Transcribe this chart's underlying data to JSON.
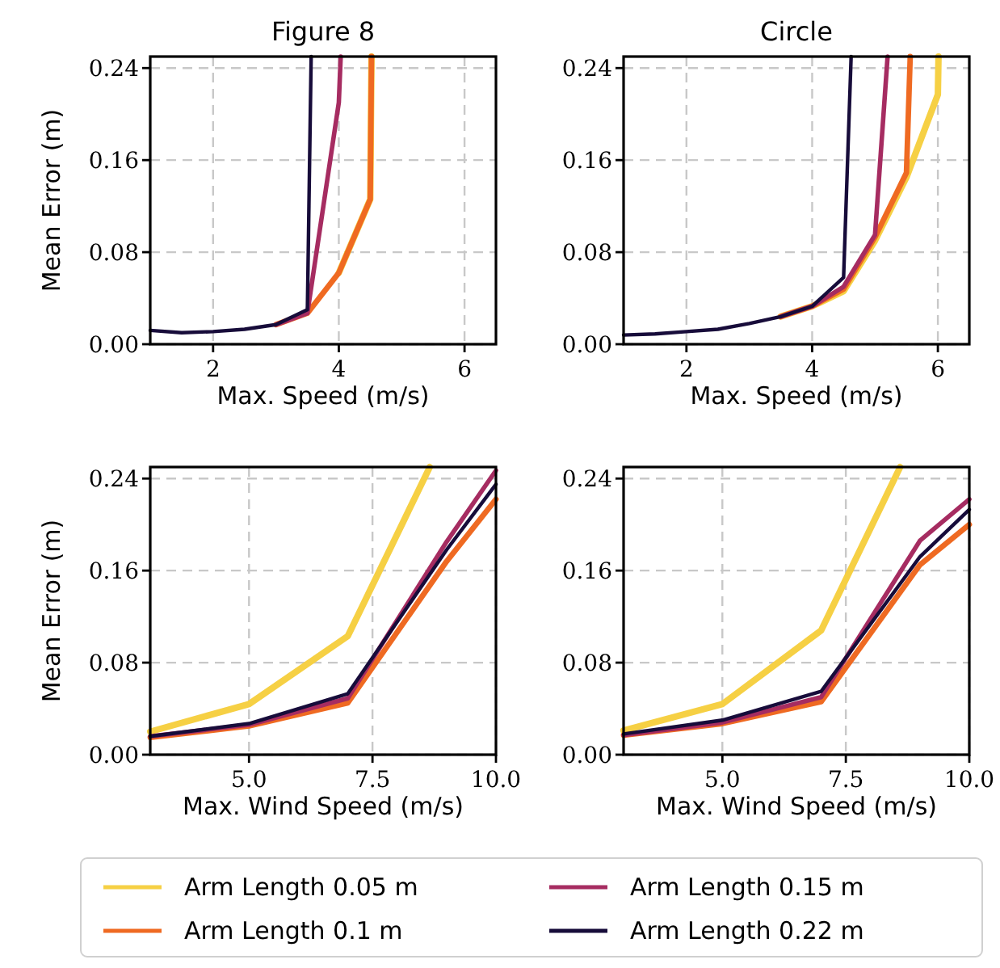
{
  "chart_data": [
    {
      "type": "line",
      "title": "Figure 8",
      "xlabel": "Max. Speed (m/s)",
      "ylabel": "Mean Error (m)",
      "xlim": [
        1,
        6.5
      ],
      "ylim": [
        0,
        0.25
      ],
      "xticks": [
        2,
        4,
        6
      ],
      "yticks": [
        {
          "value": 0,
          "label": "0.00"
        },
        {
          "value": 0.08,
          "label": "0.08"
        },
        {
          "value": 0.16,
          "label": "0.16"
        },
        {
          "value": 0.24,
          "label": "0.24"
        }
      ],
      "grid": true,
      "legend": "bottom",
      "series": [
        {
          "name": "Arm Length 0.05 m",
          "color": "#f6d044",
          "x": [
            4,
            4.5,
            4.52
          ],
          "values": [
            0.062,
            0.126,
            0.25
          ]
        },
        {
          "name": "Arm Length 0.1 m",
          "color": "#ef6a22",
          "x": [
            3,
            3.5,
            4,
            4.5,
            4.52
          ],
          "values": [
            0.017,
            0.027,
            0.062,
            0.126,
            0.25
          ]
        },
        {
          "name": "Arm Length 0.15 m",
          "color": "#a62c61",
          "x": [
            3,
            3.5,
            4,
            4.03
          ],
          "values": [
            0.017,
            0.027,
            0.21,
            0.25
          ]
        },
        {
          "name": "Arm Length 0.22 m",
          "color": "#170c3a",
          "x": [
            1,
            1.5,
            2,
            2.5,
            3,
            3.5,
            3.56
          ],
          "values": [
            0.012,
            0.01,
            0.011,
            0.013,
            0.017,
            0.03,
            0.25
          ]
        }
      ]
    },
    {
      "type": "line",
      "title": "Circle",
      "xlabel": "Max. Speed (m/s)",
      "xlim": [
        1,
        6.5
      ],
      "ylim": [
        0,
        0.25
      ],
      "xticks": [
        2,
        4,
        6
      ],
      "yticks": [
        {
          "value": 0,
          "label": "0.00"
        },
        {
          "value": 0.08,
          "label": "0.08"
        },
        {
          "value": 0.16,
          "label": "0.16"
        },
        {
          "value": 0.24,
          "label": "0.24"
        }
      ],
      "grid": true,
      "series": [
        {
          "color": "#f6d044",
          "x": [
            3.5,
            4,
            4.5,
            5,
            5.5,
            6,
            6.01
          ],
          "values": [
            0.024,
            0.033,
            0.046,
            0.09,
            0.145,
            0.217,
            0.25
          ]
        },
        {
          "color": "#ef6a22",
          "x": [
            3.5,
            4,
            4.5,
            5,
            5.5,
            5.56
          ],
          "values": [
            0.024,
            0.033,
            0.048,
            0.093,
            0.149,
            0.25
          ]
        },
        {
          "color": "#a62c61",
          "x": [
            3.5,
            4,
            4.5,
            5,
            5.2
          ],
          "values": [
            0.024,
            0.033,
            0.05,
            0.095,
            0.25
          ]
        },
        {
          "color": "#170c3a",
          "x": [
            1,
            1.5,
            2,
            2.5,
            3,
            3.5,
            4,
            4.5,
            4.62
          ],
          "values": [
            0.008,
            0.009,
            0.011,
            0.013,
            0.018,
            0.024,
            0.033,
            0.058,
            0.25
          ]
        }
      ]
    },
    {
      "type": "line",
      "xlabel": "Max. Wind Speed (m/s)",
      "ylabel": "Mean Error (m)",
      "xlim": [
        3,
        10
      ],
      "ylim": [
        0,
        0.25
      ],
      "xticks": [
        {
          "value": 5,
          "label": "5.0"
        },
        {
          "value": 7.5,
          "label": "7.5"
        },
        {
          "value": 10,
          "label": "10.0"
        }
      ],
      "yticks": [
        {
          "value": 0,
          "label": "0.00"
        },
        {
          "value": 0.08,
          "label": "0.08"
        },
        {
          "value": 0.16,
          "label": "0.16"
        },
        {
          "value": 0.24,
          "label": "0.24"
        }
      ],
      "grid": true,
      "series": [
        {
          "color": "#f6d044",
          "x": [
            3,
            5,
            7,
            8.66
          ],
          "values": [
            0.02,
            0.044,
            0.103,
            0.25
          ]
        },
        {
          "color": "#ef6a22",
          "x": [
            3,
            5,
            7,
            9,
            10
          ],
          "values": [
            0.015,
            0.025,
            0.045,
            0.168,
            0.222
          ]
        },
        {
          "color": "#a62c61",
          "x": [
            3,
            5,
            7,
            9,
            10
          ],
          "values": [
            0.016,
            0.026,
            0.049,
            0.185,
            0.247
          ]
        },
        {
          "color": "#170c3a",
          "x": [
            3,
            5,
            7,
            9,
            10
          ],
          "values": [
            0.016,
            0.027,
            0.053,
            0.178,
            0.235
          ]
        }
      ]
    },
    {
      "type": "line",
      "xlabel": "Max. Wind Speed (m/s)",
      "xlim": [
        3,
        10
      ],
      "ylim": [
        0,
        0.25
      ],
      "xticks": [
        {
          "value": 5,
          "label": "5.0"
        },
        {
          "value": 7.5,
          "label": "7.5"
        },
        {
          "value": 10,
          "label": "10.0"
        }
      ],
      "yticks": [
        {
          "value": 0,
          "label": "0.00"
        },
        {
          "value": 0.08,
          "label": "0.08"
        },
        {
          "value": 0.16,
          "label": "0.16"
        },
        {
          "value": 0.24,
          "label": "0.24"
        }
      ],
      "grid": true,
      "series": [
        {
          "color": "#f6d044",
          "x": [
            3,
            5,
            7,
            8.6
          ],
          "values": [
            0.021,
            0.044,
            0.108,
            0.25
          ]
        },
        {
          "color": "#ef6a22",
          "x": [
            3,
            5,
            7,
            9,
            10
          ],
          "values": [
            0.017,
            0.027,
            0.046,
            0.165,
            0.2
          ]
        },
        {
          "color": "#a62c61",
          "x": [
            3,
            5,
            7,
            9,
            10
          ],
          "values": [
            0.017,
            0.028,
            0.05,
            0.186,
            0.222
          ]
        },
        {
          "color": "#170c3a",
          "x": [
            3,
            5,
            7,
            9,
            10
          ],
          "values": [
            0.018,
            0.03,
            0.055,
            0.172,
            0.213
          ]
        }
      ]
    }
  ]
}
